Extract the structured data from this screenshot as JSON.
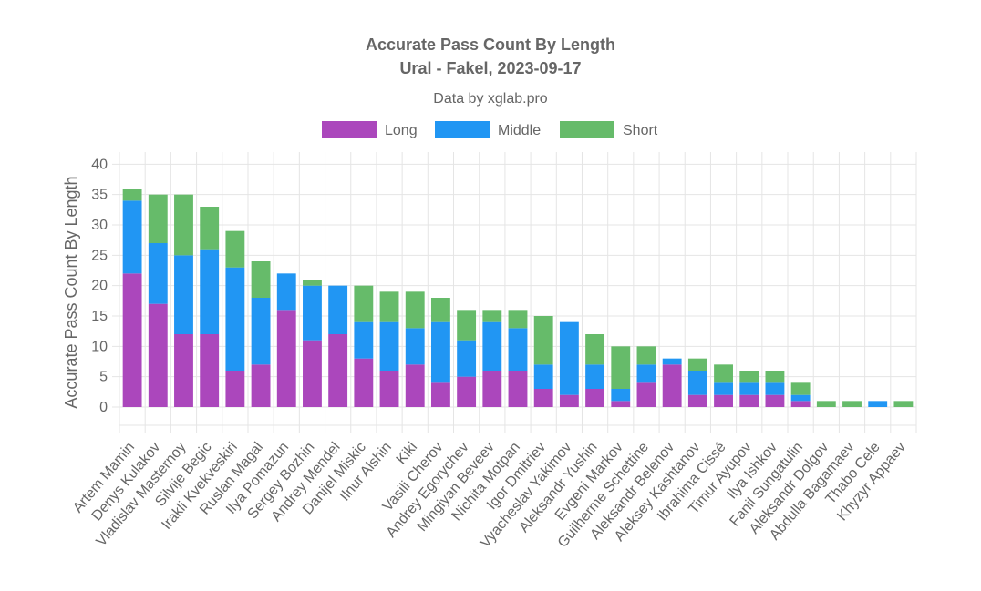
{
  "chart_data": {
    "type": "bar",
    "stacked": true,
    "title": [
      "Accurate Pass Count By Length",
      "Ural - Fakel, 2023-09-17"
    ],
    "subtitle": "Data by xglab.pro",
    "xlabel": "",
    "ylabel": "Accurate Pass Count By Length",
    "ylim": [
      -3,
      42
    ],
    "yticks": [
      0,
      5,
      10,
      15,
      20,
      25,
      30,
      35,
      40
    ],
    "legend_position": "top",
    "categories": [
      "Artem Mamin",
      "Denys Kulakov",
      "Vladislav Masternoy",
      "Silvije Begic",
      "Irakli Kvekveskiri",
      "Ruslan Magal",
      "Ilya Pomazun",
      "Sergey Bozhin",
      "Andrey Mendel",
      "Danijel Miskic",
      "Ilnur Alshin",
      "Kiki",
      "Vasili Cherov",
      "Andrey Egorychev",
      "Mingiyan Beveev",
      "Nichita Motpan",
      "Igor Dmitriev",
      "Vyacheslav Yakimov",
      "Aleksandr Yushin",
      "Evgeni Markov",
      "Guilherme Schettine",
      "Aleksandr Belenov",
      "Aleksey Kashtanov",
      "Ibrahima Cissé",
      "Timur Ayupov",
      "Ilya Ishkov",
      "Fanil Sungatulin",
      "Aleksandr Dolgov",
      "Abdulla Bagamaev",
      "Thabo Cele",
      "Khyzyr Appaev"
    ],
    "series": [
      {
        "name": "Long",
        "color": "#ab47bc",
        "values": [
          22,
          17,
          12,
          12,
          6,
          7,
          16,
          11,
          12,
          8,
          6,
          7,
          4,
          5,
          6,
          6,
          3,
          2,
          3,
          1,
          4,
          7,
          2,
          2,
          2,
          2,
          1,
          0,
          0,
          0,
          0
        ]
      },
      {
        "name": "Middle",
        "color": "#2196f3",
        "values": [
          12,
          10,
          13,
          14,
          17,
          11,
          6,
          9,
          8,
          6,
          8,
          6,
          10,
          6,
          8,
          7,
          4,
          12,
          4,
          2,
          3,
          1,
          4,
          2,
          2,
          2,
          1,
          0,
          0,
          1,
          0
        ]
      },
      {
        "name": "Short",
        "color": "#66bb6a",
        "values": [
          2,
          8,
          10,
          7,
          6,
          6,
          0,
          1,
          0,
          6,
          5,
          6,
          4,
          5,
          2,
          3,
          8,
          0,
          5,
          7,
          3,
          0,
          2,
          3,
          2,
          2,
          2,
          1,
          1,
          0,
          1
        ]
      }
    ]
  }
}
